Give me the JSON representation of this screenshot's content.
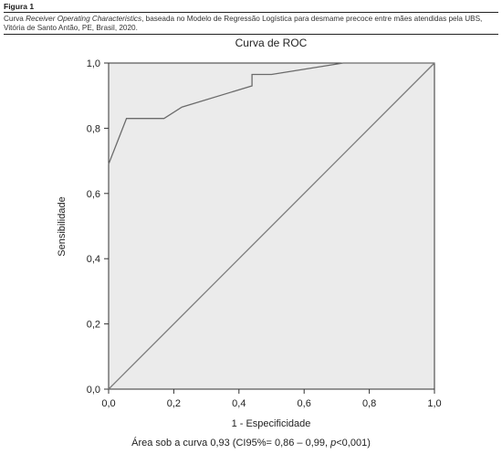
{
  "figure": {
    "label": "Figura 1",
    "caption_pre": "Curva ",
    "caption_italic": "Receiver Operating Characteristics",
    "caption_post": ", baseada no Modelo de Regressão Logística para desmame precoce entre mães atendidas pela UBS, Vitória de Santo Antão, PE, Brasil, 2020."
  },
  "footer": {
    "pre": "Área sob a curva 0,93 (CI95%= 0,86 – 0,99, ",
    "italic": "p",
    "post": "<0,001)"
  },
  "chart_data": {
    "type": "line",
    "title": "Curva de ROC",
    "xlabel": "1 - Especificidade",
    "ylabel": "Sensibilidade",
    "xlim": [
      0,
      1
    ],
    "ylim": [
      0,
      1
    ],
    "xticks": [
      0,
      0.2,
      0.4,
      0.6,
      0.8,
      1.0
    ],
    "yticks": [
      0,
      0.2,
      0.4,
      0.6,
      0.8,
      1.0
    ],
    "xtick_labels": [
      "0,0",
      "0,2",
      "0,4",
      "0,6",
      "0,8",
      "1,0"
    ],
    "ytick_labels": [
      "0,0",
      "0,2",
      "0,4",
      "0,6",
      "0,8",
      "1,0"
    ],
    "grid": false,
    "series": [
      {
        "color": "#6b6b6b",
        "x": [
          0,
          0,
          0.055,
          0.17,
          0.225,
          0.44,
          0.44,
          0.5,
          0.72,
          1.0
        ],
        "y": [
          0.69,
          0.69,
          0.83,
          0.83,
          0.865,
          0.93,
          0.965,
          0.965,
          1.0,
          1.0
        ]
      },
      {
        "color": "#7a7a7a",
        "x": [
          0,
          1
        ],
        "y": [
          0,
          1
        ]
      }
    ],
    "plot_background": "#ebebeb"
  }
}
